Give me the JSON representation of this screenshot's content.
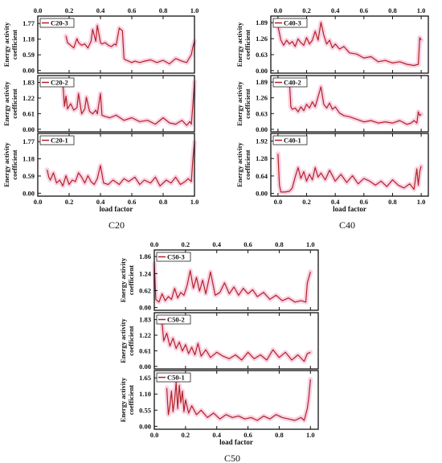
{
  "figure": {
    "groups": [
      {
        "caption": "C20",
        "xlabel": "load factor",
        "xlim": [
          0.0,
          1.0
        ],
        "xticks": [
          0.0,
          0.2,
          0.4,
          0.6,
          0.8,
          1.0
        ],
        "xtick_labels": [
          "0.0",
          "0.2",
          "0.4",
          "0.6",
          "0.8",
          "1.0"
        ],
        "panels": [
          {
            "name": "C20-3",
            "ylabel": [
              "Energy activity",
              "coefficient"
            ],
            "ylim": [
              -0.1,
              2.05
            ],
            "yticks": [
              0.0,
              0.59,
              1.18,
              1.77
            ],
            "ytick_labels": [
              "0.00",
              "0.59",
              "1.18",
              "1.77"
            ]
          },
          {
            "name": "C20-2",
            "ylabel": [
              "Energy activity",
              "coefficient"
            ],
            "ylim": [
              -0.1,
              2.1
            ],
            "yticks": [
              0.0,
              0.61,
              1.22,
              1.83
            ],
            "ytick_labels": [
              "0.00",
              "0.61",
              "1.22",
              "1.83"
            ]
          },
          {
            "name": "C20-1",
            "ylabel": [
              "Energy activity",
              "coefficient"
            ],
            "ylim": [
              -0.1,
              2.05
            ],
            "yticks": [
              0.0,
              0.59,
              1.18,
              1.77
            ],
            "ytick_labels": [
              "0.00",
              "0.59",
              "1.18",
              "1.77"
            ]
          }
        ]
      },
      {
        "caption": "C40",
        "xlabel": "load factor",
        "xlim": [
          -0.05,
          1.05
        ],
        "xticks": [
          0.0,
          0.2,
          0.4,
          0.6,
          0.8,
          1.0
        ],
        "xtick_labels": [
          "0.0",
          "0.2",
          "0.4",
          "0.6",
          "0.8",
          "1.0"
        ],
        "panels": [
          {
            "name": "C40-3",
            "ylabel": [
              "Energy activity",
              "coefficient"
            ],
            "ylim": [
              -0.1,
              2.15
            ],
            "yticks": [
              0.0,
              0.63,
              1.26,
              1.89
            ],
            "ytick_labels": [
              "0.00",
              "0.63",
              "1.26",
              "1.89"
            ]
          },
          {
            "name": "C40-2",
            "ylabel": [
              "Energy activity",
              "coefficient"
            ],
            "ylim": [
              -0.1,
              2.15
            ],
            "yticks": [
              0.0,
              0.63,
              1.26,
              1.89
            ],
            "ytick_labels": [
              "0.00",
              "0.63",
              "1.26",
              "1.89"
            ]
          },
          {
            "name": "C40-1",
            "ylabel": [
              "Energy activity",
              "coefficient"
            ],
            "ylim": [
              -0.1,
              2.2
            ],
            "yticks": [
              0.0,
              0.64,
              1.28,
              1.92
            ],
            "ytick_labels": [
              "0.00",
              "0.64",
              "1.28",
              "1.92"
            ]
          }
        ]
      },
      {
        "caption": "C50",
        "xlabel": "load factor",
        "xlim": [
          0.0,
          1.05
        ],
        "xticks": [
          0.0,
          0.2,
          0.4,
          0.6,
          0.8,
          1.0
        ],
        "xtick_labels": [
          "0.0",
          "0.2",
          "0.4",
          "0.6",
          "0.8",
          "1.0"
        ],
        "panels": [
          {
            "name": "C50-3",
            "ylabel": [
              "Energy activity",
              "coefficient"
            ],
            "ylim": [
              -0.1,
              2.1
            ],
            "yticks": [
              0.0,
              0.62,
              1.24,
              1.86
            ],
            "ytick_labels": [
              "0.00",
              "0.62",
              "1.24",
              "1.86"
            ]
          },
          {
            "name": "C50-2",
            "ylabel": [
              "Energy activity",
              "coefficient"
            ],
            "ylim": [
              -0.1,
              2.1
            ],
            "yticks": [
              0.0,
              0.61,
              1.22,
              1.83
            ],
            "ytick_labels": [
              "0.00",
              "0.61",
              "1.22",
              "1.83"
            ]
          },
          {
            "name": "C50-1",
            "ylabel": [
              "Energy activity",
              "coefficient"
            ],
            "ylim": [
              -0.1,
              1.9
            ],
            "yticks": [
              0.0,
              0.55,
              1.1,
              1.65
            ],
            "ytick_labels": [
              "0.00",
              "0.55",
              "1.10",
              "1.65"
            ]
          }
        ]
      }
    ]
  },
  "chart_data": [
    {
      "type": "line",
      "name": "C20-3",
      "color": "#b22222",
      "x": [
        0.18,
        0.19,
        0.21,
        0.23,
        0.25,
        0.26,
        0.28,
        0.3,
        0.32,
        0.34,
        0.35,
        0.37,
        0.38,
        0.4,
        0.41,
        0.43,
        0.45,
        0.47,
        0.49,
        0.5,
        0.52,
        0.54,
        0.55,
        0.56,
        0.58,
        0.6,
        0.62,
        0.65,
        0.68,
        0.72,
        0.76,
        0.8,
        0.84,
        0.88,
        0.92,
        0.95,
        0.96,
        0.98,
        0.99,
        1.0
      ],
      "y": [
        1.3,
        1.05,
        0.95,
        0.85,
        1.2,
        1.05,
        0.95,
        1.0,
        0.85,
        1.1,
        1.55,
        1.1,
        1.7,
        1.05,
        1.0,
        1.05,
        0.95,
        0.9,
        1.0,
        0.95,
        1.6,
        1.5,
        0.45,
        0.4,
        0.35,
        0.3,
        0.35,
        0.3,
        0.35,
        0.4,
        0.3,
        0.38,
        0.25,
        0.45,
        0.35,
        0.3,
        0.4,
        0.6,
        0.9,
        1.1
      ]
    },
    {
      "type": "line",
      "name": "C20-2",
      "color": "#b22222",
      "x": [
        0.16,
        0.17,
        0.18,
        0.19,
        0.21,
        0.23,
        0.25,
        0.26,
        0.28,
        0.3,
        0.31,
        0.33,
        0.35,
        0.37,
        0.38,
        0.4,
        0.41,
        0.43,
        0.46,
        0.5,
        0.55,
        0.6,
        0.65,
        0.7,
        0.75,
        0.8,
        0.84,
        0.88,
        0.92,
        0.95,
        0.97,
        0.98,
        0.99,
        1.0
      ],
      "y": [
        1.8,
        0.9,
        1.3,
        0.8,
        1.0,
        0.75,
        0.85,
        1.4,
        0.6,
        0.8,
        1.25,
        0.7,
        0.6,
        0.75,
        0.6,
        1.4,
        0.55,
        0.5,
        0.45,
        0.55,
        0.35,
        0.45,
        0.3,
        0.35,
        0.2,
        0.45,
        0.25,
        0.2,
        0.35,
        0.15,
        0.3,
        0.2,
        1.0,
        1.85
      ]
    },
    {
      "type": "line",
      "name": "C20-1",
      "color": "#b22222",
      "x": [
        0.06,
        0.07,
        0.08,
        0.1,
        0.12,
        0.14,
        0.16,
        0.18,
        0.2,
        0.22,
        0.24,
        0.26,
        0.28,
        0.3,
        0.32,
        0.34,
        0.36,
        0.38,
        0.4,
        0.42,
        0.45,
        0.48,
        0.52,
        0.55,
        0.58,
        0.62,
        0.65,
        0.68,
        0.72,
        0.75,
        0.78,
        0.82,
        0.85,
        0.88,
        0.91,
        0.94,
        0.96,
        0.98,
        0.99,
        1.0
      ],
      "y": [
        0.8,
        0.55,
        0.45,
        0.7,
        0.35,
        0.45,
        0.25,
        0.6,
        0.3,
        0.45,
        0.4,
        0.7,
        0.55,
        0.35,
        0.6,
        0.4,
        0.3,
        0.5,
        0.95,
        0.35,
        0.3,
        0.45,
        0.3,
        0.5,
        0.4,
        0.55,
        0.3,
        0.45,
        0.35,
        0.55,
        0.25,
        0.45,
        0.35,
        0.55,
        0.3,
        0.4,
        0.5,
        0.4,
        1.2,
        1.75
      ]
    },
    {
      "type": "line",
      "name": "C40-3",
      "color": "#b22222",
      "x": [
        0.0,
        0.02,
        0.04,
        0.06,
        0.08,
        0.1,
        0.12,
        0.14,
        0.16,
        0.18,
        0.2,
        0.22,
        0.24,
        0.26,
        0.28,
        0.3,
        0.32,
        0.34,
        0.36,
        0.38,
        0.4,
        0.43,
        0.46,
        0.5,
        0.55,
        0.6,
        0.65,
        0.7,
        0.75,
        0.8,
        0.85,
        0.9,
        0.95,
        0.98,
        0.99,
        1.0
      ],
      "y": [
        1.75,
        1.2,
        1.0,
        1.2,
        1.05,
        1.15,
        0.95,
        1.25,
        1.1,
        1.0,
        1.3,
        1.05,
        1.2,
        1.55,
        1.2,
        1.9,
        1.4,
        1.05,
        1.2,
        0.9,
        1.05,
        0.85,
        0.95,
        0.7,
        0.65,
        0.5,
        0.55,
        0.35,
        0.4,
        0.3,
        0.35,
        0.25,
        0.2,
        0.25,
        1.3,
        1.2
      ]
    },
    {
      "type": "line",
      "name": "C40-2",
      "color": "#b22222",
      "x": [
        0.08,
        0.09,
        0.1,
        0.12,
        0.14,
        0.16,
        0.18,
        0.2,
        0.22,
        0.24,
        0.26,
        0.28,
        0.3,
        0.32,
        0.34,
        0.36,
        0.38,
        0.4,
        0.43,
        0.46,
        0.5,
        0.55,
        0.6,
        0.65,
        0.7,
        0.75,
        0.8,
        0.85,
        0.9,
        0.93,
        0.95,
        0.97,
        0.98,
        0.99,
        1.0
      ],
      "y": [
        1.9,
        0.9,
        0.8,
        0.85,
        0.7,
        0.9,
        0.75,
        1.0,
        0.85,
        1.1,
        0.9,
        1.3,
        1.7,
        1.0,
        0.85,
        1.05,
        0.8,
        0.9,
        0.65,
        0.55,
        0.5,
        0.4,
        0.3,
        0.35,
        0.25,
        0.3,
        0.25,
        0.35,
        0.2,
        0.25,
        0.35,
        0.25,
        0.7,
        0.55,
        0.6
      ]
    },
    {
      "type": "line",
      "name": "C40-1",
      "color": "#b22222",
      "x": [
        0.0,
        0.01,
        0.02,
        0.05,
        0.08,
        0.1,
        0.12,
        0.14,
        0.16,
        0.18,
        0.2,
        0.22,
        0.24,
        0.26,
        0.28,
        0.3,
        0.33,
        0.36,
        0.4,
        0.44,
        0.48,
        0.52,
        0.56,
        0.6,
        0.64,
        0.68,
        0.72,
        0.76,
        0.8,
        0.84,
        0.88,
        0.92,
        0.95,
        0.97,
        0.98,
        0.99,
        1.0
      ],
      "y": [
        1.45,
        0.3,
        0.05,
        0.05,
        0.08,
        0.2,
        0.6,
        0.95,
        0.55,
        0.8,
        0.45,
        0.7,
        0.5,
        0.95,
        0.6,
        0.75,
        0.5,
        0.85,
        0.45,
        0.7,
        0.4,
        0.65,
        0.35,
        0.55,
        0.45,
        0.3,
        0.45,
        0.25,
        0.5,
        0.3,
        0.2,
        0.35,
        0.15,
        0.9,
        0.3,
        0.8,
        1.0
      ]
    },
    {
      "type": "line",
      "name": "C50-3",
      "color": "#b22222",
      "x": [
        0.0,
        0.01,
        0.03,
        0.05,
        0.07,
        0.09,
        0.11,
        0.13,
        0.15,
        0.17,
        0.19,
        0.21,
        0.23,
        0.25,
        0.27,
        0.29,
        0.31,
        0.33,
        0.36,
        0.39,
        0.42,
        0.45,
        0.48,
        0.51,
        0.54,
        0.57,
        0.6,
        0.63,
        0.66,
        0.7,
        0.74,
        0.78,
        0.82,
        0.86,
        0.9,
        0.94,
        0.97,
        0.98,
        1.0
      ],
      "y": [
        1.6,
        0.3,
        0.2,
        0.5,
        0.25,
        0.4,
        0.3,
        0.7,
        0.35,
        0.55,
        0.45,
        0.8,
        1.35,
        0.7,
        1.1,
        0.6,
        1.0,
        0.5,
        1.3,
        0.45,
        0.55,
        0.9,
        0.5,
        0.75,
        0.45,
        0.7,
        0.5,
        0.65,
        0.4,
        0.55,
        0.3,
        0.45,
        0.25,
        0.35,
        0.2,
        0.25,
        0.2,
        0.9,
        1.3
      ]
    },
    {
      "type": "line",
      "name": "C50-2",
      "color": "#b22222",
      "x": [
        0.05,
        0.06,
        0.08,
        0.1,
        0.12,
        0.14,
        0.16,
        0.18,
        0.2,
        0.22,
        0.24,
        0.26,
        0.28,
        0.3,
        0.33,
        0.36,
        0.4,
        0.44,
        0.48,
        0.52,
        0.56,
        0.6,
        0.64,
        0.68,
        0.72,
        0.76,
        0.8,
        0.84,
        0.88,
        0.92,
        0.96,
        0.98,
        1.0
      ],
      "y": [
        1.7,
        1.0,
        1.3,
        0.8,
        1.1,
        0.7,
        0.95,
        0.6,
        0.85,
        0.5,
        0.75,
        0.45,
        0.9,
        0.4,
        0.65,
        0.35,
        0.55,
        0.4,
        0.3,
        0.45,
        0.25,
        0.55,
        0.3,
        0.45,
        0.25,
        0.65,
        0.35,
        0.55,
        0.25,
        0.45,
        0.2,
        0.5,
        0.55
      ]
    },
    {
      "type": "line",
      "name": "C50-1",
      "color": "#b22222",
      "x": [
        0.08,
        0.09,
        0.1,
        0.11,
        0.12,
        0.13,
        0.14,
        0.15,
        0.16,
        0.17,
        0.18,
        0.19,
        0.2,
        0.22,
        0.24,
        0.27,
        0.3,
        0.34,
        0.38,
        0.42,
        0.46,
        0.5,
        0.54,
        0.58,
        0.62,
        0.66,
        0.7,
        0.74,
        0.78,
        0.82,
        0.86,
        0.9,
        0.94,
        0.96,
        0.98,
        0.99,
        1.0
      ],
      "y": [
        1.3,
        0.4,
        0.7,
        1.2,
        0.5,
        0.9,
        1.5,
        0.6,
        1.4,
        0.8,
        1.2,
        0.5,
        0.9,
        0.45,
        0.7,
        0.4,
        0.55,
        0.3,
        0.45,
        0.25,
        0.4,
        0.3,
        0.35,
        0.25,
        0.3,
        0.2,
        0.35,
        0.25,
        0.4,
        0.3,
        0.25,
        0.2,
        0.3,
        0.2,
        0.6,
        1.0,
        1.6
      ]
    }
  ]
}
